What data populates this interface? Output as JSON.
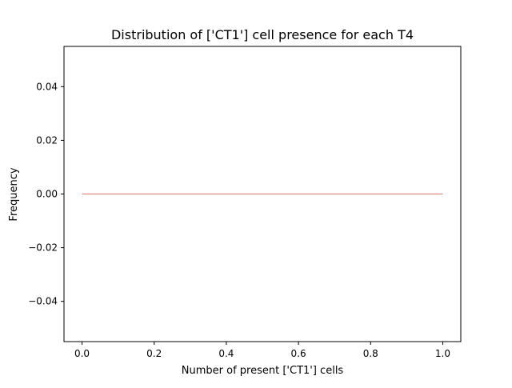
{
  "chart_data": {
    "type": "line",
    "title": "Distribution of ['CT1'] cell presence for each T4",
    "xlabel": "Number of present ['CT1'] cells",
    "ylabel": "Frequency",
    "xlim": [
      -0.05,
      1.05
    ],
    "ylim": [
      -0.055,
      0.055
    ],
    "x_ticks": [
      0.0,
      0.2,
      0.4,
      0.6,
      0.8,
      1.0
    ],
    "x_tick_labels": [
      "0.0",
      "0.2",
      "0.4",
      "0.6",
      "0.8",
      "1.0"
    ],
    "y_ticks": [
      -0.04,
      -0.02,
      0.0,
      0.02,
      0.04
    ],
    "y_tick_labels": [
      "−0.04",
      "−0.02",
      "0.00",
      "0.02",
      "0.04"
    ],
    "grid": false,
    "series": [
      {
        "x": [
          0.0,
          1.0
        ],
        "y": [
          0.0,
          0.0
        ],
        "color": "#d98b84"
      }
    ]
  }
}
